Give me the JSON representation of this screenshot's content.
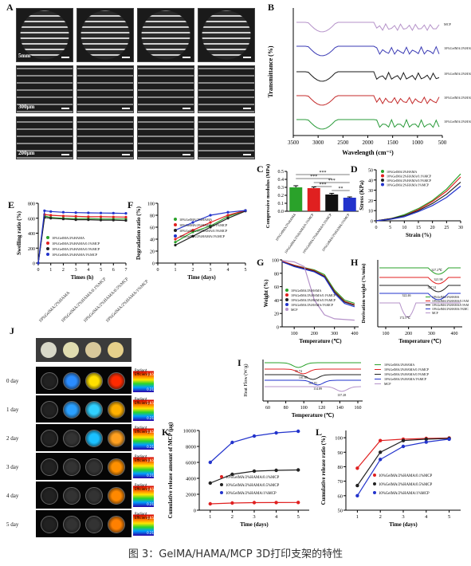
{
  "panel_labels": {
    "A": "A",
    "B": "B",
    "C": "C",
    "D": "D",
    "E": "E",
    "F": "F",
    "G": "G",
    "H": "H",
    "I": "I",
    "J": "J",
    "K": "K",
    "L": "L"
  },
  "panel_a": {
    "scale_top": "5mm",
    "scale_mid": "300μm",
    "scale_bot": "200μm"
  },
  "ftir": {
    "xlabel": "Wavelength (cm⁻¹)",
    "ylabel": "Transmittance (%)",
    "ticks": [
      "3500",
      "3000",
      "2500",
      "2000",
      "1500",
      "1000",
      "500"
    ],
    "curves": [
      {
        "name": "MCP",
        "color": "#b592c9"
      },
      {
        "name": "10%GelMA/2%HAMA",
        "color": "#3b3bb5"
      },
      {
        "name": "10%GelMA/2%HAMA/0.1%MCP",
        "color": "#1a1a1a"
      },
      {
        "name": "10%GelMA/2%HAMA/0.5%MCP",
        "color": "#c42b2b"
      },
      {
        "name": "10%GelMA/2%HAMA/1%MCP",
        "color": "#2a9b3a"
      }
    ]
  },
  "chart_data": [
    {
      "panel": "C",
      "type": "bar",
      "ylabel": "Compressive modulus (MPa)",
      "yticks": [
        "0.0",
        "0.1",
        "0.2",
        "0.3",
        "0.4",
        "0.5"
      ],
      "ylim": [
        0,
        0.5
      ],
      "categories": [
        "10%GelMA/2%HAMA",
        "10%GelMA/2%HAMA/0.1%MCP",
        "10%GelMA/2%HAMA/0.5%MCP",
        "10%GelMA/2%HAMA/1%MCP"
      ],
      "values": [
        0.3,
        0.29,
        0.21,
        0.17
      ],
      "errors": [
        0.02,
        0.015,
        0.015,
        0.01
      ],
      "colors": [
        "#2aa22a",
        "#e02020",
        "#111111",
        "#2233cc"
      ],
      "significance": [
        "***",
        "***",
        "***",
        "***",
        "**"
      ]
    },
    {
      "panel": "D",
      "type": "line",
      "xlabel": "Strain (%)",
      "ylabel": "Stress (KPa)",
      "xticks": [
        "0",
        "5",
        "10",
        "15",
        "20",
        "25",
        "30"
      ],
      "yticks": [
        "0",
        "10",
        "20",
        "30",
        "40",
        "50"
      ],
      "xlim": [
        0,
        30
      ],
      "ylim": [
        0,
        50
      ],
      "legend": [
        "10%GelMA/2%HAMA",
        "10%GelMA/2%HAMA/0.1%MCP",
        "10%GelMA/2%HAMA/0.5%MCP",
        "10%GelMA/2%HAMA/1%MCP"
      ],
      "series": [
        {
          "name": "10%GelMA/2%HAMA",
          "color": "#2aa22a",
          "x": [
            0,
            5,
            10,
            15,
            20,
            25,
            30
          ],
          "y": [
            0,
            2,
            6,
            12,
            20,
            31,
            46
          ]
        },
        {
          "name": "10%GelMA/2%HAMA/0.1%MCP",
          "color": "#e02020",
          "x": [
            0,
            5,
            10,
            15,
            20,
            25,
            30
          ],
          "y": [
            0,
            2,
            5,
            11,
            19,
            29,
            43
          ]
        },
        {
          "name": "10%GelMA/2%HAMA/0.5%MCP",
          "color": "#222222",
          "x": [
            0,
            5,
            10,
            15,
            20,
            25,
            30
          ],
          "y": [
            0,
            2,
            5,
            10,
            17,
            26,
            38
          ]
        },
        {
          "name": "10%GelMA/2%HAMA/1%MCP",
          "color": "#2233cc",
          "x": [
            0,
            5,
            10,
            15,
            20,
            25,
            30
          ],
          "y": [
            0,
            1.5,
            4,
            9,
            15,
            23,
            34
          ]
        }
      ]
    },
    {
      "panel": "E",
      "type": "line",
      "xlabel": "Times (h)",
      "ylabel": "Swelling ratio (%)",
      "xticks": [
        "0",
        "1",
        "2",
        "3",
        "4",
        "5",
        "6",
        "7"
      ],
      "yticks": [
        "0",
        "200",
        "400",
        "600",
        "800"
      ],
      "xlim": [
        0,
        7
      ],
      "ylim": [
        0,
        800
      ],
      "series": [
        {
          "name": "10%GelMA/2%HAMA",
          "color": "#2aa22a",
          "x": [
            0,
            0.5,
            1,
            2,
            3,
            4,
            5,
            6,
            7
          ],
          "y": [
            0,
            630,
            610,
            600,
            595,
            595,
            590,
            590,
            590
          ]
        },
        {
          "name": "10%GelMA/2%HAMA/0.1%MCP",
          "color": "#e02020",
          "x": [
            0,
            0.5,
            1,
            2,
            3,
            4,
            5,
            6,
            7
          ],
          "y": [
            0,
            650,
            640,
            630,
            625,
            620,
            620,
            618,
            615
          ]
        },
        {
          "name": "10%GelMA/2%HAMA/0.5%MCP",
          "color": "#222222",
          "x": [
            0,
            0.5,
            1,
            2,
            3,
            4,
            5,
            6,
            7
          ],
          "y": [
            0,
            610,
            600,
            590,
            580,
            580,
            575,
            575,
            570
          ]
        },
        {
          "name": "10%GelMA/2%HAMA/1%MCP",
          "color": "#2233cc",
          "x": [
            0,
            0.5,
            1,
            2,
            3,
            4,
            5,
            6,
            7
          ],
          "y": [
            0,
            700,
            690,
            680,
            675,
            672,
            670,
            668,
            665
          ]
        }
      ]
    },
    {
      "panel": "F",
      "type": "line",
      "xlabel": "Time (days)",
      "ylabel": "Degradation ratio (%)",
      "xticks": [
        "0",
        "1",
        "2",
        "3",
        "4",
        "5"
      ],
      "yticks": [
        "0",
        "20",
        "40",
        "60",
        "80",
        "100"
      ],
      "xlim": [
        0,
        5
      ],
      "ylim": [
        0,
        100
      ],
      "series": [
        {
          "name": "10%GelMA/2%HAMA",
          "color": "#2aa22a",
          "x": [
            1,
            2,
            3,
            4,
            5
          ],
          "y": [
            35,
            52,
            62,
            78,
            88
          ]
        },
        {
          "name": "10%GelMA/2%HAMA/0.1%MCP",
          "color": "#e02020",
          "x": [
            1,
            2,
            3,
            4,
            5
          ],
          "y": [
            40,
            55,
            68,
            80,
            88
          ]
        },
        {
          "name": "10%GelMA/2%HAMA/0.5%MCP",
          "color": "#222222",
          "x": [
            1,
            2,
            3,
            4,
            5
          ],
          "y": [
            30,
            45,
            60,
            75,
            87
          ]
        },
        {
          "name": "10%GelMA/2%HAMA/1%MCP",
          "color": "#2233cc",
          "x": [
            1,
            2,
            3,
            4,
            5
          ],
          "y": [
            55,
            68,
            80,
            85,
            88
          ]
        }
      ]
    },
    {
      "panel": "G",
      "type": "line",
      "xlabel": "Temperature (℃)",
      "ylabel": "Weight (%)",
      "xticks": [
        "100",
        "200",
        "300",
        "400"
      ],
      "yticks": [
        "0",
        "20",
        "40",
        "60",
        "80",
        "100"
      ],
      "xlim": [
        40,
        420
      ],
      "ylim": [
        0,
        100
      ],
      "series": [
        {
          "name": "10%GelMA/2%HAMA",
          "color": "#2aa22a",
          "x": [
            40,
            100,
            200,
            250,
            300,
            350,
            400
          ],
          "y": [
            98,
            92,
            85,
            78,
            55,
            40,
            35
          ]
        },
        {
          "name": "10%GelMA/2%HAMA/0.1%MCP",
          "color": "#e02020",
          "x": [
            40,
            100,
            200,
            250,
            300,
            350,
            400
          ],
          "y": [
            98,
            92,
            84,
            76,
            53,
            38,
            33
          ]
        },
        {
          "name": "10%GelMA/2%HAMA/0.5%MCP",
          "color": "#222222",
          "x": [
            40,
            100,
            200,
            250,
            300,
            350,
            400
          ],
          "y": [
            97,
            91,
            83,
            75,
            52,
            37,
            32
          ]
        },
        {
          "name": "10%GelMA/2%HAMA/1%MCP",
          "color": "#2233cc",
          "x": [
            40,
            100,
            200,
            250,
            300,
            350,
            400
          ],
          "y": [
            97,
            90,
            82,
            74,
            50,
            35,
            30
          ]
        },
        {
          "name": "MCP",
          "color": "#b592c9",
          "x": [
            40,
            100,
            150,
            200,
            250,
            300,
            400
          ],
          "y": [
            99,
            97,
            90,
            40,
            18,
            12,
            10
          ]
        }
      ]
    },
    {
      "panel": "H",
      "type": "line",
      "xlabel": "Temperature (℃)",
      "ylabel": "Derivation weight (%/min)",
      "xticks": [
        "100",
        "200",
        "300",
        "400"
      ],
      "annotations": [
        "327.2℃",
        "321.98",
        "327.31",
        "322.46",
        "172.5℃"
      ],
      "series": [
        {
          "name": "10%GelMA/2%HAMA",
          "color": "#2aa22a"
        },
        {
          "name": "10%GelMA/2%HAMA/0.1%MCP",
          "color": "#e02020"
        },
        {
          "name": "10%GelMA/2%HAMA/0.5%MCP",
          "color": "#222222"
        },
        {
          "name": "10%GelMA/2%HAMA/1%MCP",
          "color": "#2233cc"
        },
        {
          "name": "MCP",
          "color": "#b592c9"
        }
      ]
    },
    {
      "panel": "I",
      "type": "line",
      "xlabel": "Temperature (℃)",
      "ylabel": "Heat Flow (W/g)",
      "xticks": [
        "60",
        "80",
        "100",
        "120",
        "140",
        "160"
      ],
      "annotations": [
        "96.74",
        "101.65",
        "109.81",
        "114.89",
        "137.28"
      ],
      "series": [
        {
          "name": "10%GelMA/2%HAMA",
          "color": "#2aa22a"
        },
        {
          "name": "10%GelMA/2%HAMA/0.1%MCP",
          "color": "#e02020"
        },
        {
          "name": "10%GelMA/2%HAMA/0.5%MCP",
          "color": "#222222"
        },
        {
          "name": "10%GelMA/2%HAMA/1%MCP",
          "color": "#2233cc"
        },
        {
          "name": "MCP",
          "color": "#b592c9"
        }
      ]
    },
    {
      "panel": "K",
      "type": "line",
      "xlabel": "Time (days)",
      "ylabel": "Cumulative release amount of MCP (μg)",
      "xticks": [
        "1",
        "2",
        "3",
        "4",
        "5"
      ],
      "yticks": [
        "0",
        "2000",
        "4000",
        "6000",
        "8000",
        "10000"
      ],
      "xlim": [
        0.5,
        5.5
      ],
      "ylim": [
        0,
        10000
      ],
      "series": [
        {
          "name": "10%GelMA/2%HAMA/0.1%MCP",
          "color": "#e02020",
          "x": [
            1,
            2,
            3,
            4,
            5
          ],
          "y": [
            800,
            900,
            950,
            960,
            970
          ]
        },
        {
          "name": "10%GelMA/2%HAMA/0.5%MCP",
          "color": "#222222",
          "x": [
            1,
            2,
            3,
            4,
            5
          ],
          "y": [
            3400,
            4500,
            4900,
            5000,
            5050
          ]
        },
        {
          "name": "10%GelMA/2%HAMA/1%MCP",
          "color": "#2233cc",
          "x": [
            1,
            2,
            3,
            4,
            5
          ],
          "y": [
            6000,
            8500,
            9300,
            9700,
            9900
          ]
        }
      ]
    },
    {
      "panel": "L",
      "type": "line",
      "xlabel": "Time (days)",
      "ylabel": "Cumulative release ratio (%)",
      "xticks": [
        "1",
        "2",
        "3",
        "4",
        "5"
      ],
      "yticks": [
        "50",
        "60",
        "70",
        "80",
        "90",
        "100"
      ],
      "xlim": [
        0.5,
        5.5
      ],
      "ylim": [
        50,
        105
      ],
      "series": [
        {
          "name": "10%GelMA/2%HAMA/0.1%MCP",
          "color": "#e02020",
          "x": [
            1,
            2,
            3,
            4,
            5
          ],
          "y": [
            79,
            98,
            99,
            99.5,
            99.8
          ]
        },
        {
          "name": "10%GelMA/2%HAMA/0.5%MCP",
          "color": "#222222",
          "x": [
            1,
            2,
            3,
            4,
            5
          ],
          "y": [
            67,
            90,
            98,
            99,
            99.5
          ]
        },
        {
          "name": "10%GelMA/2%HAMA/1%MCP",
          "color": "#2233cc",
          "x": [
            1,
            2,
            3,
            4,
            5
          ],
          "y": [
            60,
            85,
            94,
            97,
            99
          ]
        }
      ]
    }
  ],
  "panel_j": {
    "headers": [
      "10%GelMA/2%HAMA",
      "10%GelMA/2%HAMA/0.1%MCP",
      "10%GelMA/2%HAMA/0.5%MCP",
      "10%GelMA/2%HAMA/1%MCP"
    ],
    "days": [
      "0 day",
      "1 day",
      "2 day",
      "3 day",
      "4 day",
      "5 day"
    ],
    "colorbar_label": "Radiant Efficiency",
    "colorbar_max": "1.65",
    "colorbar_min": "0.21"
  },
  "caption": "图 3：GelMA/HAMA/MCP 3D打印支架的特性"
}
